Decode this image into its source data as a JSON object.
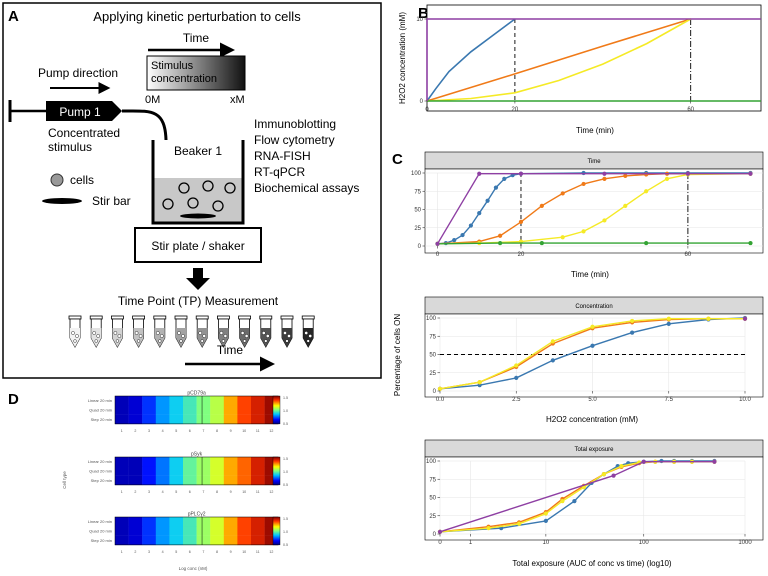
{
  "panelA": {
    "letter": "A",
    "title": "Applying kinetic perturbation to cells",
    "time_label": "Time",
    "pump_direction": "Pump direction",
    "stimulus_line1": "Stimulus",
    "stimulus_line2": "concentration",
    "zero": "0M",
    "x_molar": "xM",
    "pump": "Pump 1",
    "concentrated_line1": "Concentrated",
    "concentrated_line2": "stimulus",
    "beaker": "Beaker 1",
    "assays": [
      "Immunoblotting",
      "Flow cytometry",
      "RNA-FISH",
      "RT-qPCR",
      "Biochemical assays"
    ],
    "cells": "cells",
    "stir_bar": "Stir bar",
    "stir_plate": "Stir plate / shaker",
    "measurement": "Time Point (TP) Measurement",
    "time_bottom": "Time"
  },
  "panelB": {
    "letter": "B",
    "ylabel": "H2O2 concentration (mM)",
    "xlabel": "Time (min)",
    "xticks": [
      "0",
      "20",
      "60"
    ],
    "yticks": [
      "0",
      "10"
    ]
  },
  "panelC": {
    "letter": "C",
    "ylabel": "Percentage of cells ON",
    "top": {
      "strip": "Time",
      "xlabel": "Time (min)",
      "xticks": [
        "0",
        "20",
        "60"
      ],
      "yticks": [
        "0",
        "25",
        "50",
        "75",
        "100"
      ]
    },
    "mid": {
      "strip": "Concentration",
      "xlabel": "H2O2 concentration (mM)",
      "xticks": [
        "0.0",
        "2.5",
        "5.0",
        "7.5",
        "10.0"
      ],
      "yticks": [
        "0",
        "25",
        "50",
        "75",
        "100"
      ]
    },
    "bot": {
      "strip": "Total exposure",
      "xlabel": "Total exposure (AUC of conc vs time) (log10)",
      "xticks": [
        "0",
        "1",
        "10",
        "100",
        "1000"
      ],
      "yticks": [
        "0",
        "25",
        "50",
        "75",
        "100"
      ]
    }
  },
  "panelD": {
    "letter": "D",
    "titles": [
      "pCD79a",
      "pSyk",
      "pPLCγ2"
    ],
    "row_labels": [
      "Linear 20 min",
      "Quad 20 min",
      "Step 20 min"
    ],
    "ylabel": "Cell type",
    "xlabel": "Log conc (nM)",
    "xticks": [
      "1",
      "2",
      "3",
      "4",
      "5",
      "6",
      "7",
      "8",
      "9",
      "10",
      "11",
      "12"
    ],
    "colorbar_ticks": [
      "1.5",
      "1.0",
      "0.5"
    ]
  },
  "colors": {
    "blue": "#3a78b0",
    "orange": "#f07a18",
    "yellow": "#f5ea26",
    "green": "#33a333",
    "purple": "#8e3fa3",
    "strip": "#d9d9d9"
  },
  "chart_data": [
    {
      "type": "line",
      "panel": "B",
      "xlabel": "Time (min)",
      "ylabel": "H2O2 concentration (mM)",
      "xlim": [
        0,
        76
      ],
      "ylim": [
        0,
        10
      ],
      "vlines": [
        20,
        60
      ],
      "series": [
        {
          "color": "#3a78b0",
          "x": [
            0,
            2,
            5,
            10,
            15,
            20
          ],
          "y": [
            0,
            1.5,
            3.6,
            6,
            8,
            10
          ]
        },
        {
          "color": "#f07a18",
          "x": [
            0,
            20,
            40,
            60
          ],
          "y": [
            0,
            3.3,
            6.7,
            10
          ]
        },
        {
          "color": "#f5ea26",
          "x": [
            0,
            10,
            20,
            30,
            40,
            50,
            60
          ],
          "y": [
            0,
            0.3,
            1,
            2.5,
            4.5,
            7,
            10
          ]
        },
        {
          "color": "#33a333",
          "x": [
            0,
            76
          ],
          "y": [
            0,
            0
          ]
        },
        {
          "color": "#8e3fa3",
          "x": [
            0,
            0,
            76
          ],
          "y": [
            0,
            10,
            10
          ]
        }
      ]
    },
    {
      "type": "line",
      "panel": "C-time",
      "xlabel": "Time (min)",
      "ylabel": "Percentage of cells ON",
      "xlim": [
        -3,
        78
      ],
      "ylim": [
        0,
        100
      ],
      "vlines": [
        20,
        60
      ],
      "series": [
        {
          "color": "#3a78b0",
          "x": [
            0,
            2,
            4,
            6,
            8,
            10,
            12,
            14,
            16,
            18,
            20,
            35,
            50,
            60,
            75
          ],
          "y": [
            3,
            4,
            8,
            15,
            28,
            45,
            62,
            80,
            92,
            97,
            99,
            100,
            100,
            100,
            100
          ]
        },
        {
          "color": "#f07a18",
          "x": [
            0,
            10,
            15,
            20,
            25,
            30,
            35,
            40,
            45,
            50,
            55,
            60,
            75
          ],
          "y": [
            3,
            6,
            14,
            33,
            55,
            72,
            85,
            92,
            96,
            98,
            99,
            99,
            99
          ]
        },
        {
          "color": "#f5ea26",
          "x": [
            0,
            10,
            20,
            30,
            35,
            40,
            45,
            50,
            55,
            60,
            75
          ],
          "y": [
            3,
            4,
            6,
            12,
            20,
            35,
            55,
            75,
            92,
            98,
            99
          ]
        },
        {
          "color": "#33a333",
          "x": [
            0,
            15,
            25,
            50,
            75
          ],
          "y": [
            3,
            4,
            4,
            4,
            4
          ]
        },
        {
          "color": "#8e3fa3",
          "x": [
            0,
            10,
            20,
            40,
            60,
            75
          ],
          "y": [
            3,
            99,
            99,
            99,
            99,
            99
          ]
        }
      ]
    },
    {
      "type": "line",
      "panel": "C-concentration",
      "xlabel": "H2O2 concentration (mM)",
      "ylabel": "Percentage of cells ON",
      "xlim": [
        0,
        10
      ],
      "ylim": [
        0,
        100
      ],
      "hline": 50,
      "series": [
        {
          "color": "#3a78b0",
          "x": [
            0,
            1.3,
            2.5,
            3.7,
            5,
            6.3,
            7.5,
            8.8,
            10
          ],
          "y": [
            3,
            8,
            18,
            42,
            62,
            80,
            92,
            98,
            100
          ]
        },
        {
          "color": "#f07a18",
          "x": [
            0,
            1.3,
            2.5,
            3.7,
            5,
            6.3,
            7.5,
            8.8,
            10
          ],
          "y": [
            3,
            12,
            33,
            65,
            86,
            94,
            98,
            99,
            99
          ]
        },
        {
          "color": "#f5ea26",
          "x": [
            0,
            1.3,
            2.5,
            3.7,
            5,
            6.3,
            7.5,
            8.8,
            10
          ],
          "y": [
            3,
            12,
            35,
            68,
            88,
            96,
            99,
            99,
            99
          ]
        },
        {
          "color": "#8e3fa3",
          "x": [
            10
          ],
          "y": [
            99
          ]
        }
      ]
    },
    {
      "type": "line",
      "panel": "C-total-exposure",
      "xlabel": "Total exposure (AUC of conc vs time) (log10)",
      "ylabel": "Percentage of cells ON",
      "xlim": [
        0,
        1000
      ],
      "ylim": [
        0,
        100
      ],
      "xscale": "log10",
      "series": [
        {
          "color": "#3a78b0",
          "x": [
            0,
            3,
            10,
            20,
            30,
            40,
            55,
            70,
            100,
            150,
            200,
            300,
            500
          ],
          "y": [
            3,
            8,
            18,
            45,
            70,
            82,
            93,
            97,
            99,
            100,
            100,
            100,
            100
          ]
        },
        {
          "color": "#f07a18",
          "x": [
            0,
            2,
            5,
            10,
            15,
            25,
            40,
            60,
            90,
            130,
            200,
            300,
            500
          ],
          "y": [
            3,
            10,
            16,
            30,
            48,
            66,
            82,
            92,
            97,
            99,
            99,
            99,
            99
          ]
        },
        {
          "color": "#f5ea26",
          "x": [
            0,
            2,
            5,
            10,
            15,
            25,
            40,
            60,
            90,
            130,
            200,
            300,
            500
          ],
          "y": [
            3,
            8,
            14,
            28,
            45,
            64,
            82,
            93,
            98,
            99,
            99,
            99,
            99
          ]
        },
        {
          "color": "#8e3fa3",
          "x": [
            0,
            50,
            100,
            500
          ],
          "y": [
            3,
            80,
            99,
            99
          ]
        }
      ]
    },
    {
      "type": "heatmap",
      "panel": "D",
      "titles": [
        "pCD79a",
        "pSyk",
        "pPLCγ2"
      ],
      "rows": [
        "Linear 20 min",
        "Quad 20 min",
        "Step 20 min"
      ],
      "columns": [
        "1",
        "2",
        "3",
        "4",
        "5",
        "6",
        "7",
        "8",
        "9",
        "10",
        "11",
        "12"
      ],
      "values": [
        [
          [
            0.1,
            0.15,
            0.3,
            0.45,
            0.55,
            0.65,
            0.75,
            0.85,
            1.1,
            1.25,
            1.35,
            1.45
          ],
          [
            0.1,
            0.15,
            0.3,
            0.45,
            0.55,
            0.65,
            0.75,
            0.85,
            1.1,
            1.25,
            1.35,
            1.45
          ],
          [
            0.1,
            0.15,
            0.3,
            0.45,
            0.55,
            0.65,
            0.75,
            0.85,
            1.1,
            1.25,
            1.35,
            1.45
          ]
        ],
        [
          [
            0.1,
            0.1,
            0.25,
            0.4,
            0.55,
            0.7,
            0.8,
            0.9,
            1.1,
            1.2,
            1.35,
            1.45
          ],
          [
            0.1,
            0.1,
            0.25,
            0.4,
            0.55,
            0.7,
            0.8,
            0.9,
            1.1,
            1.2,
            1.35,
            1.45
          ],
          [
            0.1,
            0.1,
            0.25,
            0.4,
            0.55,
            0.7,
            0.8,
            0.9,
            1.1,
            1.2,
            1.35,
            1.45
          ]
        ],
        [
          [
            0.1,
            0.15,
            0.3,
            0.45,
            0.55,
            0.65,
            0.8,
            0.9,
            1.1,
            1.25,
            1.35,
            1.45
          ],
          [
            0.1,
            0.15,
            0.3,
            0.45,
            0.55,
            0.65,
            0.8,
            0.9,
            1.1,
            1.25,
            1.35,
            1.45
          ],
          [
            0.1,
            0.15,
            0.3,
            0.45,
            0.55,
            0.65,
            0.8,
            0.9,
            1.1,
            1.25,
            1.35,
            1.45
          ]
        ]
      ],
      "colorbar_range": [
        0,
        1.5
      ]
    }
  ]
}
